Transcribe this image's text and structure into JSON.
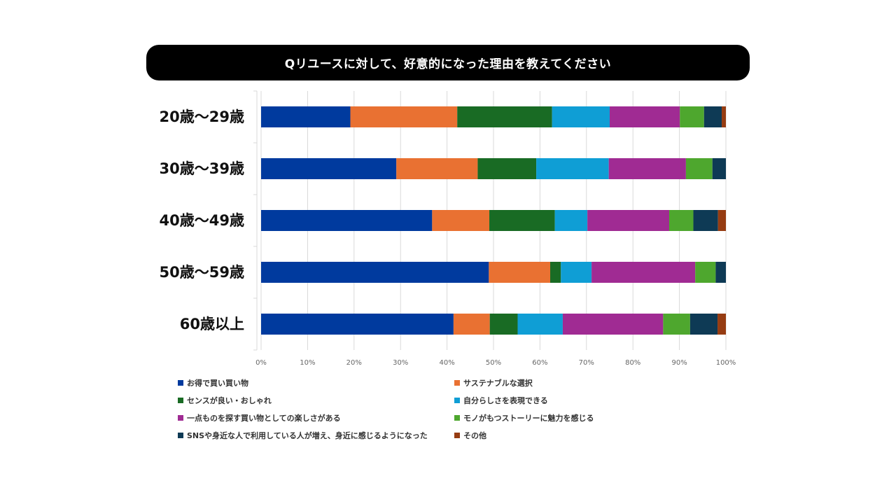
{
  "title": "Qリユースに対して、好意的になった理由を教えてください",
  "chart_data": {
    "type": "bar",
    "orientation": "horizontal",
    "stacked": "percent",
    "title": "Qリユースに対して、好意的になった理由を教えてください",
    "categories": [
      "20歳～29歳",
      "30歳～39歳",
      "40歳～49歳",
      "50歳～59歳",
      "60歳以上"
    ],
    "x_ticks": [
      "0%",
      "10%",
      "20%",
      "30%",
      "40%",
      "50%",
      "60%",
      "70%",
      "80%",
      "90%",
      "100%"
    ],
    "xlim": [
      0,
      100
    ],
    "grid": true,
    "legend_position": "bottom",
    "series": [
      {
        "name": "お得で買い買い物",
        "color": "#003a9e",
        "values": [
          19.2,
          29.1,
          36.8,
          49.0,
          41.4
        ]
      },
      {
        "name": "サステナブルな選択",
        "color": "#e97132",
        "values": [
          23.0,
          17.5,
          12.3,
          13.2,
          7.8
        ]
      },
      {
        "name": "センスが良い・おしゃれ",
        "color": "#196b24",
        "values": [
          20.4,
          12.6,
          14.1,
          2.3,
          6.0
        ]
      },
      {
        "name": "自分らしさを表現できる",
        "color": "#0f9ed5",
        "values": [
          12.4,
          15.6,
          7.0,
          6.6,
          9.7
        ]
      },
      {
        "name": "一点ものを探す買い物としての楽しさがある",
        "color": "#a02b93",
        "values": [
          15.1,
          16.6,
          17.6,
          22.3,
          21.6
        ]
      },
      {
        "name": "モノがもつストーリーに魅力を感じる",
        "color": "#4ea72e",
        "values": [
          5.2,
          5.7,
          5.2,
          4.4,
          5.8
        ]
      },
      {
        "name": "SNSや身近な人で利用している人が増え、身近に感じるようになった",
        "color": "#0e3a55",
        "values": [
          3.8,
          2.9,
          5.3,
          2.2,
          5.9
        ]
      },
      {
        "name": "その他",
        "color": "#963c12",
        "values": [
          0.9,
          0.0,
          1.7,
          0.0,
          1.8
        ]
      }
    ]
  }
}
